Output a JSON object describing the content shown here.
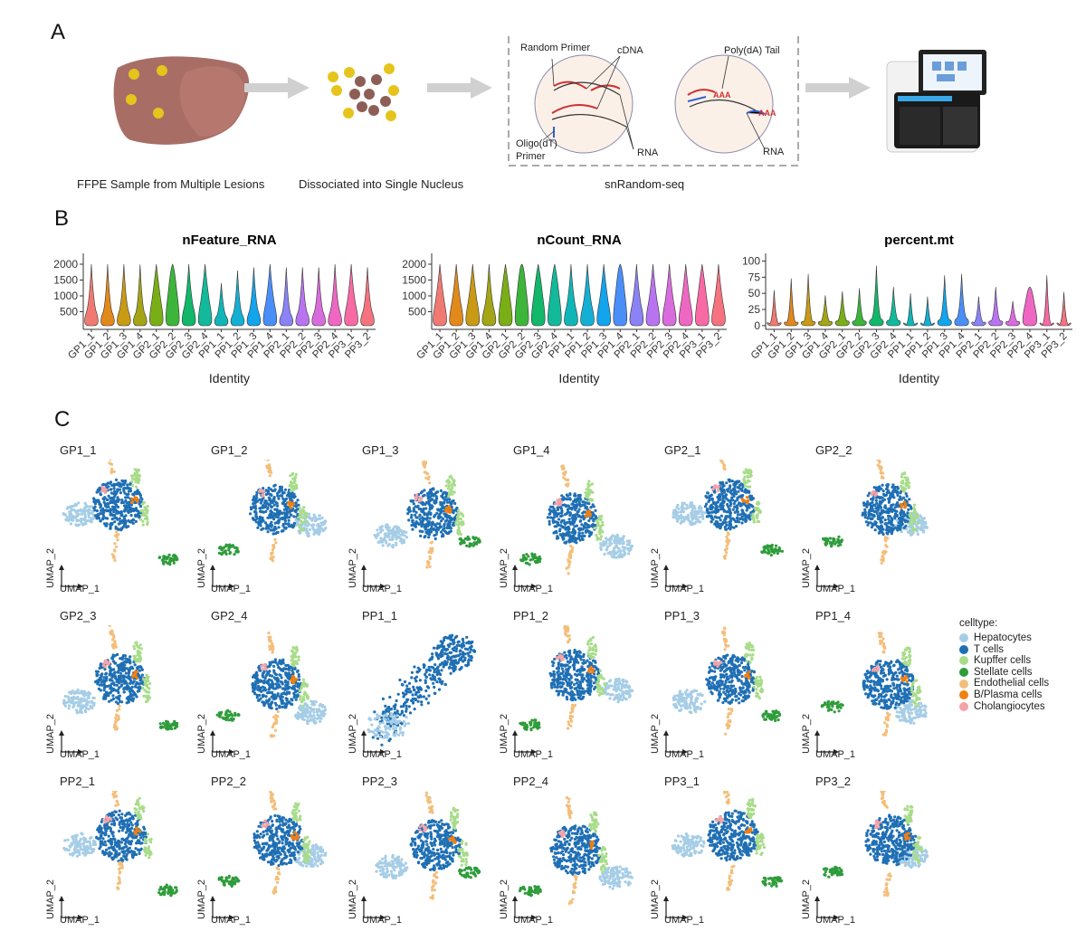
{
  "panel_a": {
    "letter": "A",
    "captions": {
      "ffpe": "FFPE Sample from Multiple Lesions",
      "dissociated": "Dissociated into Single Nucleus",
      "snrandom": "snRandom-seq"
    },
    "labels": {
      "random_primer": "Random Primer",
      "cdna": "cDNA",
      "oligo_dt": "Oligo(dT)",
      "primer": "Primer",
      "rna_left": "RNA",
      "poly_da": "Poly(dA) Tail",
      "rna_right": "RNA",
      "aaa": "AAA"
    }
  },
  "panel_b": {
    "letter": "B",
    "xlabel": "Identity",
    "chart_data": [
      {
        "type": "violin",
        "title": "nFeature_RNA",
        "xlabel": "Identity",
        "ylim": [
          0,
          2200
        ],
        "yticks": [
          500,
          1000,
          1500,
          2000
        ],
        "categories": [
          "GP1_1",
          "GP1_2",
          "GP1_3",
          "GP1_4",
          "GP2_1",
          "GP2_2",
          "GP2_3",
          "GP2_4",
          "PP1_1",
          "PP1_2",
          "PP1_3",
          "PP1_4",
          "PP2_1",
          "PP2_2",
          "PP2_3",
          "PP2_4",
          "PP3_1",
          "PP3_2"
        ],
        "max": [
          2000,
          2000,
          2000,
          1990,
          2000,
          2000,
          2000,
          2000,
          1400,
          1800,
          1900,
          2000,
          1900,
          1900,
          1900,
          2000,
          2000,
          1900
        ],
        "bulge": [
          900,
          800,
          900,
          750,
          1450,
          1850,
          1100,
          1350,
          600,
          700,
          850,
          1250,
          700,
          800,
          800,
          900,
          1200,
          850
        ]
      },
      {
        "type": "violin",
        "title": "nCount_RNA",
        "xlabel": "Identity",
        "ylim": [
          0,
          2200
        ],
        "yticks": [
          500,
          1000,
          1500,
          2000
        ],
        "categories": [
          "GP1_1",
          "GP1_2",
          "GP1_3",
          "GP1_4",
          "GP2_1",
          "GP2_2",
          "GP2_3",
          "GP2_4",
          "PP1_1",
          "PP1_2",
          "PP1_3",
          "PP1_4",
          "PP2_1",
          "PP2_2",
          "PP2_3",
          "PP2_4",
          "PP3_1",
          "PP3_2"
        ],
        "max": [
          2000,
          2000,
          2000,
          2000,
          2000,
          2000,
          2000,
          2000,
          2000,
          2000,
          2000,
          2000,
          2000,
          2000,
          2000,
          2000,
          2000,
          2000
        ],
        "bulge": [
          1350,
          1300,
          1350,
          1050,
          1600,
          1950,
          1700,
          1750,
          1100,
          1150,
          1350,
          1900,
          1200,
          1300,
          1300,
          1350,
          1600,
          1300
        ]
      },
      {
        "type": "violin",
        "title": "percent.mt",
        "xlabel": "Identity",
        "ylim": [
          -3,
          105
        ],
        "yticks": [
          0,
          25,
          50,
          75,
          100
        ],
        "categories": [
          "GP1_1",
          "GP1_2",
          "GP1_3",
          "GP1_4",
          "GP2_1",
          "GP2_2",
          "GP2_3",
          "GP2_4",
          "PP1_1",
          "PP1_2",
          "PP1_3",
          "PP1_4",
          "PP2_1",
          "PP2_2",
          "PP2_3",
          "PP2_4",
          "PP3_1",
          "PP3_2"
        ],
        "max": [
          55,
          73,
          80,
          47,
          53,
          58,
          93,
          60,
          50,
          45,
          78,
          80,
          45,
          60,
          38,
          60,
          78,
          52
        ],
        "bulge": [
          5,
          8,
          10,
          10,
          12,
          12,
          18,
          14,
          3,
          3,
          16,
          20,
          8,
          12,
          10,
          58,
          3,
          3
        ]
      }
    ]
  },
  "panel_c": {
    "letter": "C",
    "umap_x": "UMAP_1",
    "umap_y": "UMAP_2",
    "samples": [
      "GP1_1",
      "GP1_2",
      "GP1_3",
      "GP1_4",
      "GP2_1",
      "GP2_2",
      "GP2_3",
      "GP2_4",
      "PP1_1",
      "PP1_2",
      "PP1_3",
      "PP1_4",
      "PP2_1",
      "PP2_2",
      "PP2_3",
      "PP2_4",
      "PP3_1",
      "PP3_2"
    ],
    "legend": {
      "title": "celltype:",
      "items": [
        {
          "label": "Hepatocytes",
          "color": "#a6cde6"
        },
        {
          "label": "T cells",
          "color": "#1f6fb4"
        },
        {
          "label": "Kupffer cells",
          "color": "#a8dc8a"
        },
        {
          "label": "Stellate cells",
          "color": "#2e9c3a"
        },
        {
          "label": "Endothelial cells",
          "color": "#f4be7a"
        },
        {
          "label": "B/Plasma cells",
          "color": "#f07f10"
        },
        {
          "label": "Cholangiocytes",
          "color": "#f4a3a8"
        }
      ]
    }
  },
  "violin_colors": [
    "#f07a72",
    "#e2891c",
    "#c99a14",
    "#a3a516",
    "#7aae17",
    "#3db43a",
    "#12b76a",
    "#12b99a",
    "#10b5b7",
    "#13b0d4",
    "#12a4ec",
    "#4a8ff8",
    "#8b82f5",
    "#b874f0",
    "#d96cdd",
    "#ee67c3",
    "#f86aa3",
    "#f5737f"
  ]
}
